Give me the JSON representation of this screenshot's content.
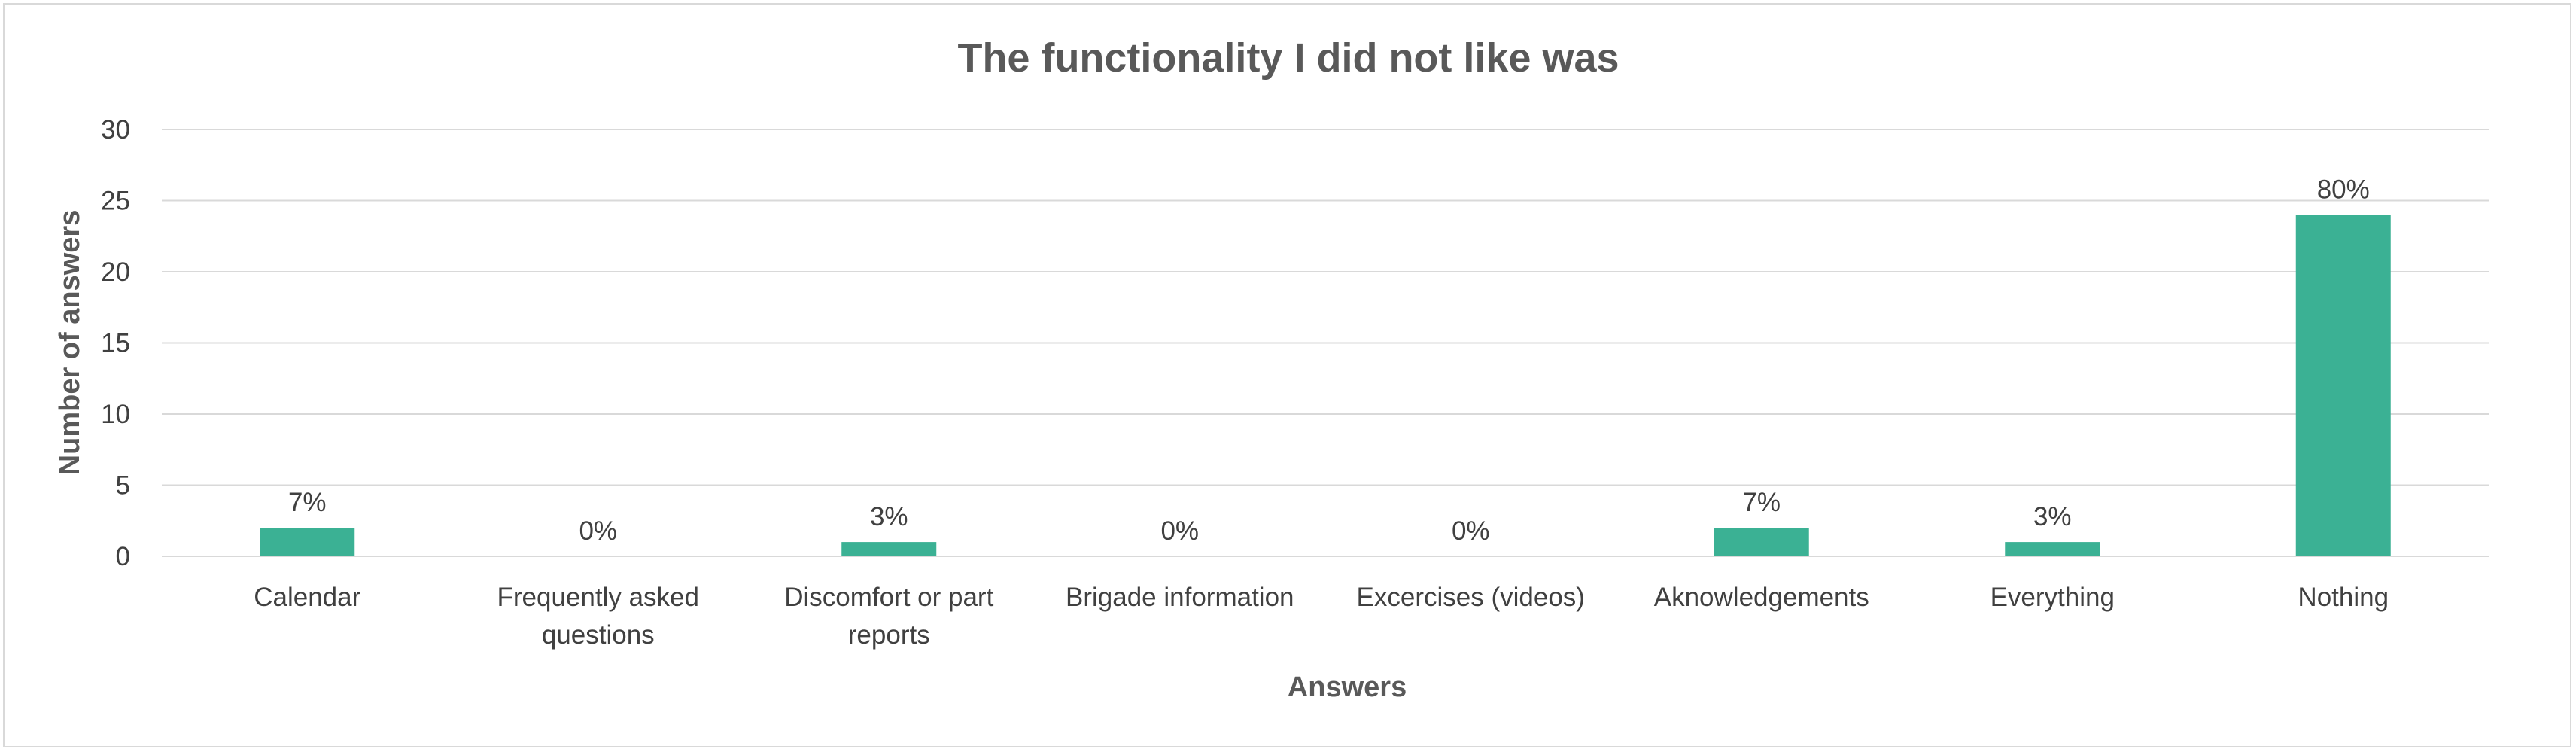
{
  "chart_data": {
    "type": "bar",
    "title": "The functionality I did not like was",
    "xlabel": "Answers",
    "ylabel": "Number of answers",
    "ylim": [
      0,
      30
    ],
    "yticks": [
      0,
      5,
      10,
      15,
      20,
      25,
      30
    ],
    "grid": true,
    "legend": "none",
    "bar_color": "#3bb194",
    "categories": [
      [
        "Calendar"
      ],
      [
        "Frequently asked",
        "questions"
      ],
      [
        "Discomfort or part",
        "reports"
      ],
      [
        "Brigade information"
      ],
      [
        "Excercises (videos)"
      ],
      [
        "Aknowledgements"
      ],
      [
        "Everything"
      ],
      [
        "Nothing"
      ]
    ],
    "values": [
      2,
      0,
      1,
      0,
      0,
      2,
      1,
      24
    ],
    "data_labels": [
      "7%",
      "0%",
      "3%",
      "0%",
      "0%",
      "7%",
      "3%",
      "80%"
    ]
  }
}
